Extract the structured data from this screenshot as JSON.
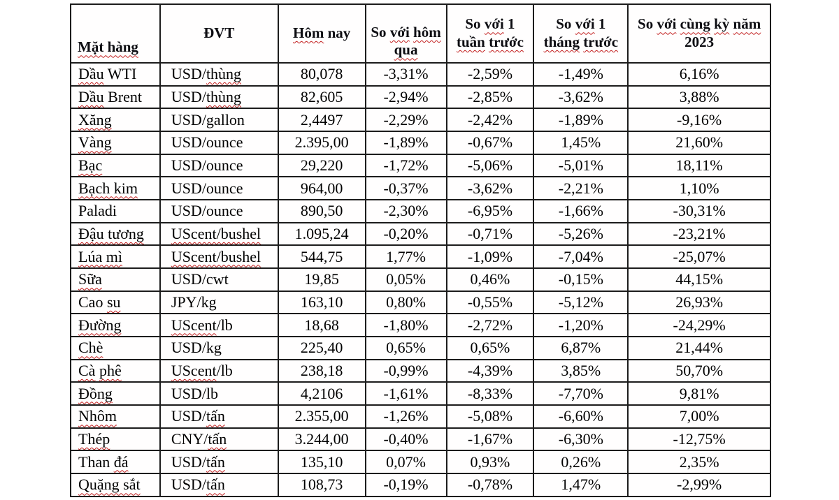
{
  "colors": {
    "border": "#1c1c1c",
    "text": "#000000",
    "spellcheck_underline": "#c21f1f",
    "background": "#ffffff"
  },
  "table": {
    "column_widths_percent": [
      12.77,
      16.87,
      12.48,
      11.58,
      12.48,
      13.47,
      20.35
    ],
    "columns": [
      {
        "id": "commodity",
        "label": "~Mặt hàng~",
        "align": "left"
      },
      {
        "id": "unit",
        "label": "ĐVT",
        "align": "left"
      },
      {
        "id": "today",
        "label": "~Hôm~ nay",
        "align": "center"
      },
      {
        "id": "vsyesterday",
        "label": "So ~với~ ~hôm qua~",
        "align": "center"
      },
      {
        "id": "vsweek",
        "label": "So ~với~ 1 ~tuần~ ~trước~",
        "align": "center"
      },
      {
        "id": "vsmonth",
        "label": "So ~với~ 1 ~tháng~ ~trước~",
        "align": "center"
      },
      {
        "id": "vs2023",
        "label": "So ~với~ ~cùng~ ~kỳ~ ~năm~ 2023",
        "align": "center"
      }
    ],
    "rows": [
      [
        "~Dầu~ WTI",
        "USD/~thùng~",
        "80,078",
        "-3,31%",
        "-2,59%",
        "-1,49%",
        "6,16%"
      ],
      [
        "~Dầu~ Brent",
        "USD/~thùng~",
        "82,605",
        "-2,94%",
        "-2,85%",
        "-3,62%",
        "3,88%"
      ],
      [
        "~Xăng~",
        "USD/gallon",
        "2,4497",
        "-2,29%",
        "-2,42%",
        "-1,89%",
        "-9,16%"
      ],
      [
        "~Vàng~",
        "USD/ounce",
        "2.395,00",
        "-1,89%",
        "-0,67%",
        "1,45%",
        "21,60%"
      ],
      [
        "~Bạc~",
        "USD/ounce",
        "29,220",
        "-1,72%",
        "-5,06%",
        "-5,01%",
        "18,11%"
      ],
      [
        "~Bạch kim~",
        "USD/ounce",
        "964,00",
        "-0,37%",
        "-3,62%",
        "-2,21%",
        "1,10%"
      ],
      [
        "Paladi",
        "USD/ounce",
        "890,50",
        "-2,30%",
        "-6,95%",
        "-1,66%",
        "-30,31%"
      ],
      [
        "~Đậu tương~",
        "~UScent/bushel~",
        "1.095,24",
        "-0,20%",
        "-0,71%",
        "-5,26%",
        "-23,21%"
      ],
      [
        "~Lúa mì~",
        "~UScent/bushel~",
        "544,75",
        "1,77%",
        "-1,09%",
        "-7,04%",
        "-25,07%"
      ],
      [
        "~Sữa~",
        "USD/cwt",
        "19,85",
        "0,05%",
        "0,46%",
        "-0,15%",
        "44,15%"
      ],
      [
        "Cao ~su~",
        "JPY/kg",
        "163,10",
        "0,80%",
        "-0,55%",
        "-5,12%",
        "26,93%"
      ],
      [
        "~Đường~",
        "~UScent~/lb",
        "18,68",
        "-1,80%",
        "-2,72%",
        "-1,20%",
        "-24,29%"
      ],
      [
        "~Chè~",
        "USD/kg",
        "225,40",
        "0,65%",
        "0,65%",
        "6,87%",
        "21,44%"
      ],
      [
        "~Cà~ ~phê~",
        "~UScent~/lb",
        "238,18",
        "-0,99%",
        "-4,39%",
        "3,85%",
        "50,70%"
      ],
      [
        "~Đồng~",
        "USD/lb",
        "4,2106",
        "-1,61%",
        "-8,33%",
        "-7,70%",
        "9,81%"
      ],
      [
        "~Nhôm~",
        "USD/~tấn~",
        "2.355,00",
        "-1,26%",
        "-5,08%",
        "-6,60%",
        "7,00%"
      ],
      [
        "~Thép~",
        "CNY/~tấn~",
        "3.244,00",
        "-0,40%",
        "-1,67%",
        "-6,30%",
        "-12,75%"
      ],
      [
        "Than ~đá~",
        "USD/~tấn~",
        "135,10",
        "0,07%",
        "0,93%",
        "0,26%",
        "2,35%"
      ],
      [
        "~Quặng sắt~",
        "USD/~tấn~",
        "108,73",
        "-0,19%",
        "-0,78%",
        "1,47%",
        "-2,99%"
      ]
    ]
  },
  "chart_data": {
    "type": "table",
    "title": "",
    "columns": [
      "Mặt hàng",
      "ĐVT",
      "Hôm nay",
      "So với hôm qua",
      "So với 1 tuần trước",
      "So với 1 tháng trước",
      "So với cùng kỳ năm 2023"
    ],
    "rows": [
      [
        "Dầu WTI",
        "USD/thùng",
        "80,078",
        "-3,31%",
        "-2,59%",
        "-1,49%",
        "6,16%"
      ],
      [
        "Dầu Brent",
        "USD/thùng",
        "82,605",
        "-2,94%",
        "-2,85%",
        "-3,62%",
        "3,88%"
      ],
      [
        "Xăng",
        "USD/gallon",
        "2,4497",
        "-2,29%",
        "-2,42%",
        "-1,89%",
        "-9,16%"
      ],
      [
        "Vàng",
        "USD/ounce",
        "2.395,00",
        "-1,89%",
        "-0,67%",
        "1,45%",
        "21,60%"
      ],
      [
        "Bạc",
        "USD/ounce",
        "29,220",
        "-1,72%",
        "-5,06%",
        "-5,01%",
        "18,11%"
      ],
      [
        "Bạch kim",
        "USD/ounce",
        "964,00",
        "-0,37%",
        "-3,62%",
        "-2,21%",
        "1,10%"
      ],
      [
        "Paladi",
        "USD/ounce",
        "890,50",
        "-2,30%",
        "-6,95%",
        "-1,66%",
        "-30,31%"
      ],
      [
        "Đậu tương",
        "UScent/bushel",
        "1.095,24",
        "-0,20%",
        "-0,71%",
        "-5,26%",
        "-23,21%"
      ],
      [
        "Lúa mì",
        "UScent/bushel",
        "544,75",
        "1,77%",
        "-1,09%",
        "-7,04%",
        "-25,07%"
      ],
      [
        "Sữa",
        "USD/cwt",
        "19,85",
        "0,05%",
        "0,46%",
        "-0,15%",
        "44,15%"
      ],
      [
        "Cao su",
        "JPY/kg",
        "163,10",
        "0,80%",
        "-0,55%",
        "-5,12%",
        "26,93%"
      ],
      [
        "Đường",
        "UScent/lb",
        "18,68",
        "-1,80%",
        "-2,72%",
        "-1,20%",
        "-24,29%"
      ],
      [
        "Chè",
        "USD/kg",
        "225,40",
        "0,65%",
        "0,65%",
        "6,87%",
        "21,44%"
      ],
      [
        "Cà phê",
        "UScent/lb",
        "238,18",
        "-0,99%",
        "-4,39%",
        "3,85%",
        "50,70%"
      ],
      [
        "Đồng",
        "USD/lb",
        "4,2106",
        "-1,61%",
        "-8,33%",
        "-7,70%",
        "9,81%"
      ],
      [
        "Nhôm",
        "USD/tấn",
        "2.355,00",
        "-1,26%",
        "-5,08%",
        "-6,60%",
        "7,00%"
      ],
      [
        "Thép",
        "CNY/tấn",
        "3.244,00",
        "-0,40%",
        "-1,67%",
        "-6,30%",
        "-12,75%"
      ],
      [
        "Than đá",
        "USD/tấn",
        "135,10",
        "0,07%",
        "0,93%",
        "0,26%",
        "2,35%"
      ],
      [
        "Quặng sắt",
        "USD/tấn",
        "108,73",
        "-0,19%",
        "-0,78%",
        "1,47%",
        "-2,99%"
      ]
    ]
  }
}
